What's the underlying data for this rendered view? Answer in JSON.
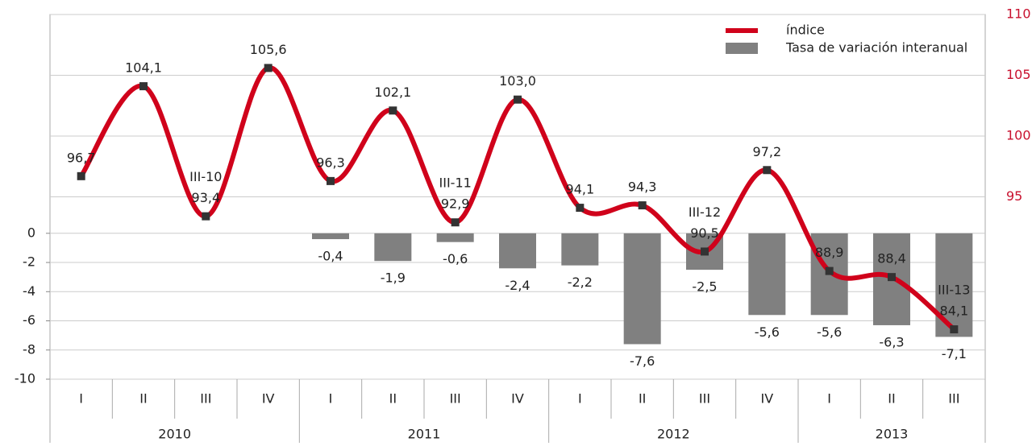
{
  "chart_data": {
    "type": "bar-line",
    "categories": [
      "I",
      "II",
      "III",
      "IV",
      "I",
      "II",
      "III",
      "IV",
      "I",
      "II",
      "III",
      "IV",
      "I",
      "II",
      "III"
    ],
    "years": [
      {
        "label": "2010",
        "span": 4
      },
      {
        "label": "2011",
        "span": 4
      },
      {
        "label": "2012",
        "span": 4
      },
      {
        "label": "2013",
        "span": 3
      }
    ],
    "series": [
      {
        "name": "índice",
        "type": "line",
        "axis": "y2",
        "color": "#d0021b",
        "values": [
          96.7,
          104.1,
          93.4,
          105.6,
          96.3,
          102.1,
          92.9,
          103.0,
          94.1,
          94.3,
          90.5,
          97.2,
          88.9,
          88.4,
          84.1
        ],
        "value_labels": [
          "96,7",
          "104,1",
          "93,4",
          "105,6",
          "96,3",
          "102,1",
          "92,9",
          "103,0",
          "94,1",
          "94,3",
          "90,5",
          "97,2",
          "88,9",
          "88,4",
          "84,1"
        ],
        "point_labels": [
          null,
          null,
          "III-10",
          null,
          null,
          null,
          "III-11",
          null,
          null,
          null,
          "III-12",
          null,
          null,
          null,
          "III-13"
        ]
      },
      {
        "name": "Tasa de variación interanual",
        "type": "bar",
        "color": "#808080",
        "values": [
          null,
          null,
          null,
          null,
          -0.4,
          -1.9,
          -0.6,
          -2.4,
          -2.2,
          -7.6,
          -2.5,
          -5.6,
          -5.6,
          -6.3,
          -7.1
        ],
        "value_labels": [
          null,
          null,
          null,
          null,
          "-0,4",
          "-1,9",
          "-0,6",
          "-2,4",
          "-2,2",
          "-7,6",
          "-2,5",
          "-5,6",
          "-5,6",
          "-6,3",
          "-7,1"
        ]
      }
    ],
    "ylim": [
      -10,
      15
    ],
    "yticks": [
      0,
      -2,
      -4,
      -6,
      -8,
      -10
    ],
    "y2lim": [
      80,
      110
    ],
    "y2ticks": [
      95,
      100,
      105,
      110
    ],
    "grid": true,
    "legend": "top-right"
  }
}
